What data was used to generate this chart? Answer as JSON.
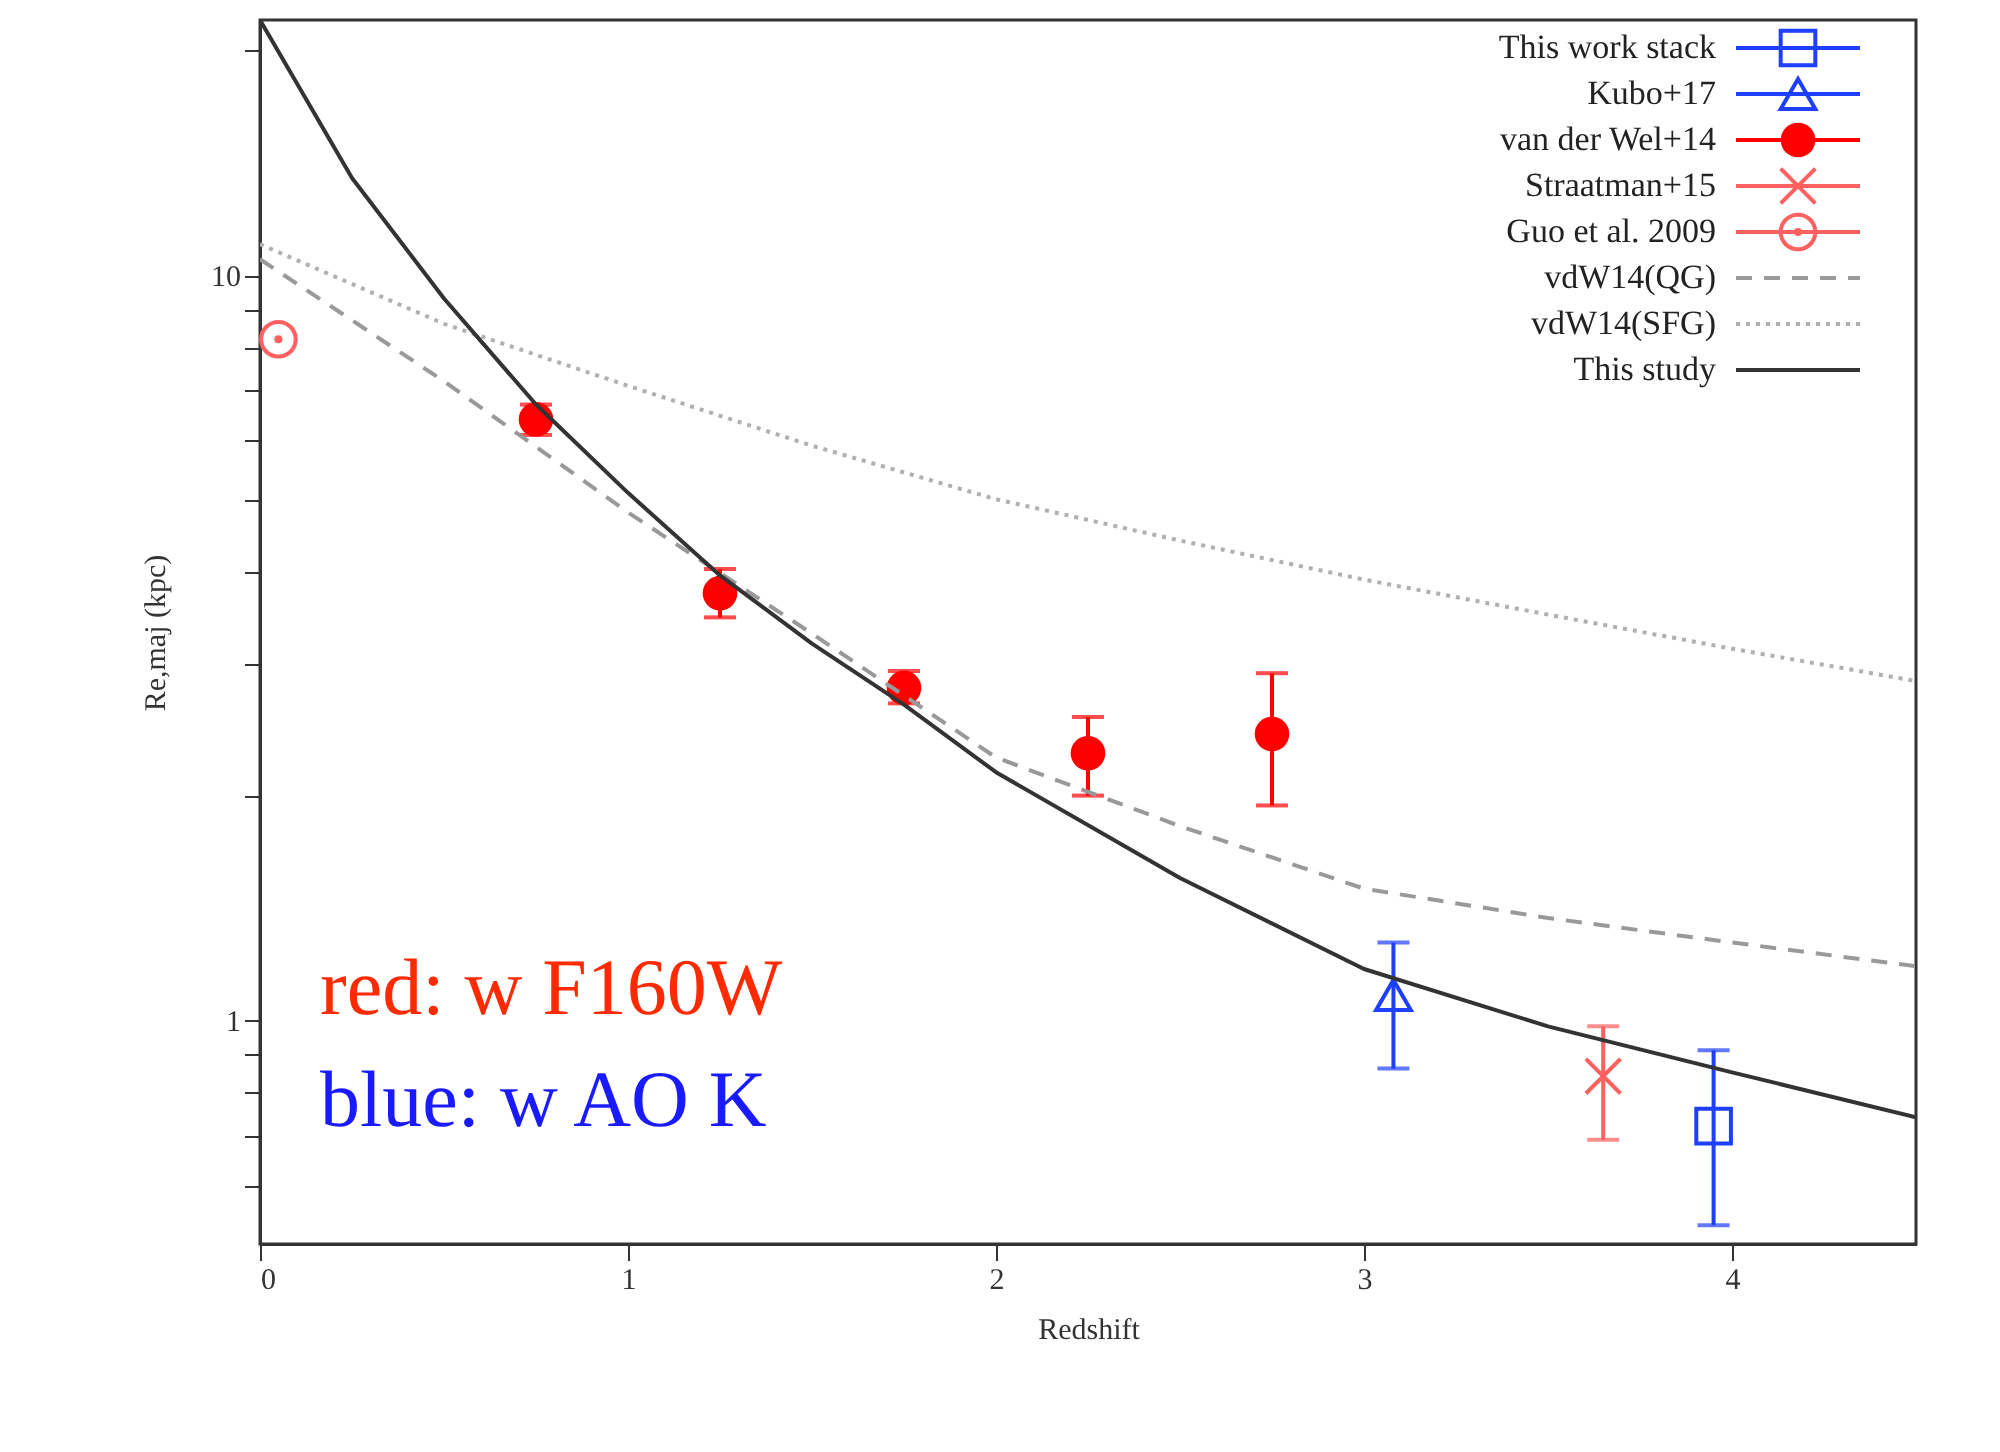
{
  "chart_data": {
    "type": "scatter",
    "xlabel": "Redshift",
    "ylabel": "Re,maj (kpc)",
    "log": "y",
    "grid": false,
    "legend": "top right",
    "xlim": [
      0,
      4.5
    ],
    "xticks": [
      0,
      1,
      2,
      3,
      4
    ],
    "ylim": [
      0.5,
      22
    ],
    "yticks": [
      {
        "value": 0.6,
        "label": null
      },
      {
        "value": 0.7,
        "label": null
      },
      {
        "value": 0.8,
        "label": null
      },
      {
        "value": 0.9,
        "label": null
      },
      1,
      {
        "value": 2,
        "label": null
      },
      {
        "value": 3,
        "label": null
      },
      {
        "value": 4,
        "label": null
      },
      {
        "value": 5,
        "label": null
      },
      {
        "value": 6,
        "label": null
      },
      {
        "value": 7,
        "label": null
      },
      {
        "value": 8,
        "label": null
      },
      {
        "value": 9,
        "label": null
      },
      10,
      {
        "value": 20,
        "label": null
      }
    ],
    "annotations": [
      "red: w F160W",
      "blue: w AO K"
    ],
    "series": [
      {
        "name": "This work stack",
        "type": "scatter",
        "marker": "square",
        "color": "#1f3fff",
        "x": [
          3.95
        ],
        "values": [
          0.72
        ],
        "errors": [
          [
            0.53,
            0.91
          ]
        ]
      },
      {
        "name": "Kubo+17",
        "type": "scatter",
        "marker": "triangle",
        "color": "#1f3fff",
        "x": [
          3.08
        ],
        "values": [
          1.08
        ],
        "errors": [
          [
            0.86,
            1.27
          ]
        ]
      },
      {
        "name": "van der Wel+14",
        "type": "scatter",
        "marker": "circle",
        "color": "#ff0000",
        "x": [
          0.75,
          1.25,
          1.75,
          2.25,
          2.75
        ],
        "values": [
          6.4,
          3.74,
          2.79,
          2.28,
          2.42
        ],
        "errors": [
          [
            6.1,
            6.7
          ],
          [
            3.47,
            4.03
          ],
          [
            2.66,
            2.94
          ],
          [
            2.0,
            2.55
          ],
          [
            1.94,
            2.92
          ]
        ]
      },
      {
        "name": "Straatman+15",
        "type": "scatter",
        "marker": "cross",
        "color": "#ff6060",
        "x": [
          3.65
        ],
        "values": [
          0.84
        ],
        "errors": [
          [
            0.69,
            0.98
          ]
        ]
      },
      {
        "name": "Guo et al. 2009",
        "type": "scatter",
        "marker": "circle",
        "color": "#ff6060",
        "x": [
          0.05
        ],
        "values": [
          8.2
        ]
      },
      {
        "name": "vdW14(QG)",
        "type": "line",
        "line_style": "dashed",
        "color": "#999999",
        "x": [
          0,
          0.5,
          1,
          1.5,
          2,
          2.5,
          3,
          3.5,
          4,
          4.5
        ],
        "values": [
          10.5,
          7.2,
          4.8,
          3.3,
          2.25,
          1.82,
          1.5,
          1.37,
          1.27,
          1.18
        ]
      },
      {
        "name": "vdW14(SFG)",
        "type": "line",
        "line_style": "dotted",
        "color": "#b0b0b0",
        "x": [
          0,
          0.5,
          1,
          1.5,
          2,
          2.5,
          3,
          3.5,
          4,
          4.5
        ],
        "values": [
          11,
          8.6,
          7.1,
          5.9,
          5.0,
          4.4,
          3.9,
          3.5,
          3.15,
          2.85
        ]
      },
      {
        "name": "This study",
        "type": "line",
        "line_style": "solid",
        "color": "#333333",
        "x": [
          0,
          0.25,
          0.5,
          0.75,
          1,
          1.25,
          1.5,
          1.75,
          2,
          2.5,
          3,
          3.5,
          4,
          4.5
        ],
        "values": [
          22,
          13.5,
          9.3,
          6.7,
          5.1,
          3.95,
          3.2,
          2.65,
          2.15,
          1.55,
          1.17,
          0.98,
          0.85,
          0.74
        ]
      }
    ]
  }
}
